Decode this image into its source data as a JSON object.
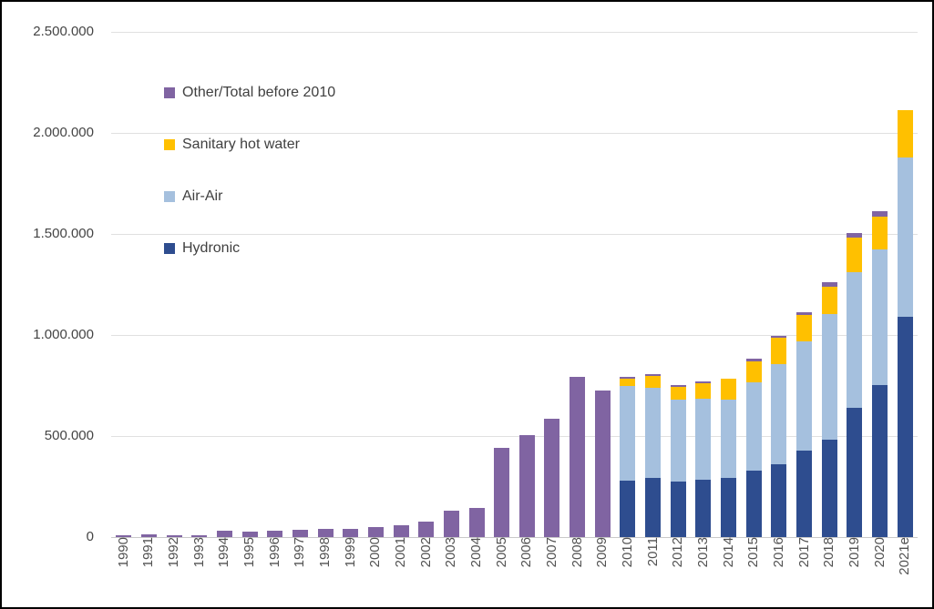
{
  "frame": {
    "background": "#ffffff",
    "border_color": "#000000"
  },
  "colors": {
    "other": "#8064A2",
    "sanitary": "#FFC000",
    "airair": "#A5C0DE",
    "hydronic": "#2E4D8F",
    "gridline": "#e0e0e0",
    "axis_line": "#c9c9c9",
    "tick_text": "#444444",
    "category_text": "#525252"
  },
  "legend": {
    "items": [
      {
        "label": "Other/Total before 2010",
        "color": "#8064A2"
      },
      {
        "label": "Sanitary hot water",
        "color": "#FFC000"
      },
      {
        "label": "Air-Air",
        "color": "#A5C0DE"
      },
      {
        "label": "Hydronic",
        "color": "#2E4D8F"
      }
    ]
  },
  "y_axis": {
    "tick_labels": [
      "2.500.000",
      "2.000.000",
      "1.500.000",
      "1.000.000",
      "500.000",
      "0"
    ],
    "min": 0,
    "max": 2500000,
    "step": 500000
  },
  "chart_data": {
    "type": "bar",
    "stacked": true,
    "title": "",
    "xlabel": "",
    "ylabel": "",
    "ylim": [
      0,
      2500000
    ],
    "grid": true,
    "legend_position": "upper-left-inside",
    "categories": [
      "1990",
      "1991",
      "1992",
      "1993",
      "1994",
      "1995",
      "1996",
      "1997",
      "1998",
      "1999",
      "2000",
      "2001",
      "2002",
      "2003",
      "2004",
      "2005",
      "2006",
      "2007",
      "2008",
      "2009",
      "2010",
      "2011",
      "2012",
      "2013",
      "2014",
      "2015",
      "2016",
      "2017",
      "2018",
      "2019",
      "2020",
      "2021e"
    ],
    "series": [
      {
        "name": "Hydronic",
        "color": "#2E4D8F",
        "values": [
          0,
          0,
          0,
          0,
          0,
          0,
          0,
          0,
          0,
          0,
          0,
          0,
          0,
          0,
          0,
          0,
          0,
          0,
          0,
          0,
          281000,
          294000,
          276000,
          284000,
          294000,
          329000,
          362000,
          427000,
          483000,
          640000,
          754000,
          1090000
        ]
      },
      {
        "name": "Air-Air",
        "color": "#A5C0DE",
        "values": [
          0,
          0,
          0,
          0,
          0,
          0,
          0,
          0,
          0,
          0,
          0,
          0,
          0,
          0,
          0,
          0,
          0,
          0,
          0,
          0,
          465000,
          447000,
          403000,
          402000,
          387000,
          435000,
          492000,
          540000,
          619000,
          670000,
          670000,
          788000
        ]
      },
      {
        "name": "Sanitary hot water",
        "color": "#FFC000",
        "values": [
          0,
          0,
          0,
          0,
          0,
          0,
          0,
          0,
          0,
          0,
          0,
          0,
          0,
          0,
          0,
          0,
          0,
          0,
          0,
          0,
          38000,
          55000,
          64000,
          75000,
          105000,
          105000,
          131000,
          132000,
          135000,
          171000,
          162000,
          234000
        ]
      },
      {
        "name": "Other/Total before 2010",
        "color": "#8064A2",
        "values": [
          9000,
          13000,
          11000,
          11000,
          31000,
          25000,
          30000,
          36000,
          40000,
          40000,
          49000,
          60000,
          77000,
          130000,
          145000,
          440000,
          505000,
          585000,
          795000,
          725000,
          8000,
          11000,
          11000,
          11000,
          0,
          14000,
          9000,
          14000,
          23000,
          24000,
          27000,
          0
        ]
      }
    ]
  }
}
